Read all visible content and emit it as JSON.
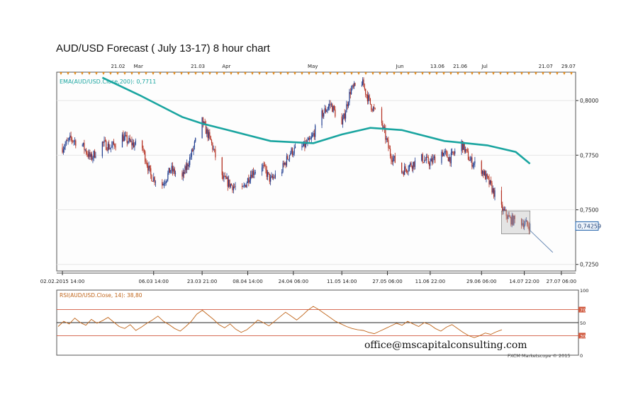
{
  "title": "AUD/USD Forecast ( July 13-17) 8 hour chart",
  "watermark_email": "office@mscapitalconsulting.com",
  "footer_credit": "FXCM Marketscope © 2015",
  "colors": {
    "up_candle": "#1f3c8f",
    "down_candle": "#b32d1e",
    "ema": "#1aa5a0",
    "rsi_line": "#c0651a",
    "rsi_level_lines": "#d0593f",
    "grid": "#e6e6e6",
    "axis": "#333333",
    "top_marker": "#e08a1c",
    "price_box_border": "#1e5fa8"
  },
  "chart_data": [
    {
      "type": "candlestick",
      "panel": "price",
      "ema_label": "EMA(AUD/USD.Close,200): 0,7711",
      "ema_period": 200,
      "current_price_label": "0,74259",
      "current_price": 0.74259,
      "ylim": [
        0.722,
        0.813
      ],
      "yticks": [
        "0,8000",
        "0,7750",
        "0,7500",
        "0,7250"
      ],
      "ytick_values": [
        0.8,
        0.775,
        0.75,
        0.725
      ],
      "xtick_labels": [
        "02.02.2015 14:00",
        "06.03 14:00",
        "23.03 21:00",
        "08.04 14:00",
        "24.04 06:00",
        "11.05 14:00",
        "27.05 06:00",
        "11.06 22:00",
        "29.06 06:00",
        "14.07 22:00",
        "27.07 06:00"
      ],
      "xtick_dates": [
        "2015-02-02",
        "2015-03-06",
        "2015-03-23",
        "2015-04-08",
        "2015-04-24",
        "2015-05-11",
        "2015-05-27",
        "2015-06-11",
        "2015-06-29",
        "2015-07-14",
        "2015-07-27"
      ],
      "top_axis_labels": [
        "21.02",
        "Mar",
        "21.03",
        "Apr",
        "May",
        "Jun",
        "13.06",
        "21.06",
        "Jul",
        "21.07",
        "29.07"
      ],
      "top_axis_dates": [
        "2015-02-21",
        "2015-03-01",
        "2015-03-21",
        "2015-04-01",
        "2015-05-01",
        "2015-06-01",
        "2015-06-13",
        "2015-06-21",
        "2015-07-01",
        "2015-07-21",
        "2015-07-29"
      ],
      "close_series": {
        "dates": [
          "2015-02-02",
          "2015-02-05",
          "2015-02-09",
          "2015-02-12",
          "2015-02-16",
          "2015-02-19",
          "2015-02-23",
          "2015-02-26",
          "2015-03-02",
          "2015-03-05",
          "2015-03-09",
          "2015-03-12",
          "2015-03-16",
          "2015-03-19",
          "2015-03-23",
          "2015-03-26",
          "2015-03-30",
          "2015-04-02",
          "2015-04-06",
          "2015-04-09",
          "2015-04-13",
          "2015-04-16",
          "2015-04-20",
          "2015-04-23",
          "2015-04-27",
          "2015-04-30",
          "2015-05-04",
          "2015-05-07",
          "2015-05-11",
          "2015-05-14",
          "2015-05-18",
          "2015-05-21",
          "2015-05-25",
          "2015-05-28",
          "2015-06-01",
          "2015-06-04",
          "2015-06-08",
          "2015-06-11",
          "2015-06-15",
          "2015-06-18",
          "2015-06-22",
          "2015-06-25",
          "2015-06-29",
          "2015-07-02",
          "2015-07-06",
          "2015-07-09",
          "2015-07-13",
          "2015-07-16"
        ],
        "values": [
          0.7785,
          0.7825,
          0.7795,
          0.7735,
          0.7805,
          0.7785,
          0.7835,
          0.7805,
          0.7785,
          0.7655,
          0.7615,
          0.7685,
          0.7645,
          0.7745,
          0.7905,
          0.7815,
          0.7645,
          0.7615,
          0.7585,
          0.7665,
          0.7705,
          0.7635,
          0.7685,
          0.7765,
          0.7785,
          0.7815,
          0.7935,
          0.7985,
          0.7885,
          0.8045,
          0.8085,
          0.7985,
          0.7895,
          0.7755,
          0.7675,
          0.7705,
          0.7735,
          0.7715,
          0.7765,
          0.7735,
          0.7805,
          0.7725,
          0.7685,
          0.7615,
          0.7505,
          0.7455,
          0.7445,
          0.7425
        ]
      },
      "ema_series": {
        "dates": [
          "2015-02-16",
          "2015-03-01",
          "2015-03-16",
          "2015-03-23",
          "2015-04-01",
          "2015-04-16",
          "2015-05-01",
          "2015-05-11",
          "2015-05-21",
          "2015-06-01",
          "2015-06-16",
          "2015-07-01",
          "2015-07-11",
          "2015-07-16"
        ],
        "values": [
          0.8105,
          0.8025,
          0.7925,
          0.7895,
          0.7865,
          0.7815,
          0.7805,
          0.7845,
          0.7875,
          0.7865,
          0.7815,
          0.7795,
          0.7765,
          0.7711
        ]
      },
      "forecast_arrow": {
        "from_date": "2015-07-16",
        "from_value": 0.7425,
        "to_date": "2015-07-24",
        "to_value": 0.7305
      }
    },
    {
      "type": "line",
      "panel": "rsi",
      "label": "RSI(AUD/USD.Close, 14): 38,80",
      "ylim": [
        0,
        100
      ],
      "levels": [
        70,
        50,
        30
      ],
      "yticks": [
        "100",
        "70",
        "50",
        "30",
        "0"
      ],
      "values": [
        44,
        52,
        48,
        57,
        50,
        46,
        55,
        49,
        53,
        58,
        51,
        44,
        41,
        47,
        38,
        43,
        49,
        54,
        60,
        52,
        47,
        41,
        37,
        44,
        52,
        63,
        69,
        62,
        55,
        47,
        42,
        48,
        40,
        35,
        39,
        46,
        54,
        50,
        45,
        52,
        59,
        66,
        60,
        54,
        61,
        69,
        75,
        70,
        64,
        58,
        52,
        48,
        44,
        41,
        39,
        38,
        35,
        33,
        37,
        41,
        45,
        49,
        46,
        52,
        48,
        44,
        50,
        47,
        41,
        37,
        43,
        47,
        41,
        35,
        30,
        27,
        30,
        34,
        32,
        36,
        39
      ]
    }
  ]
}
